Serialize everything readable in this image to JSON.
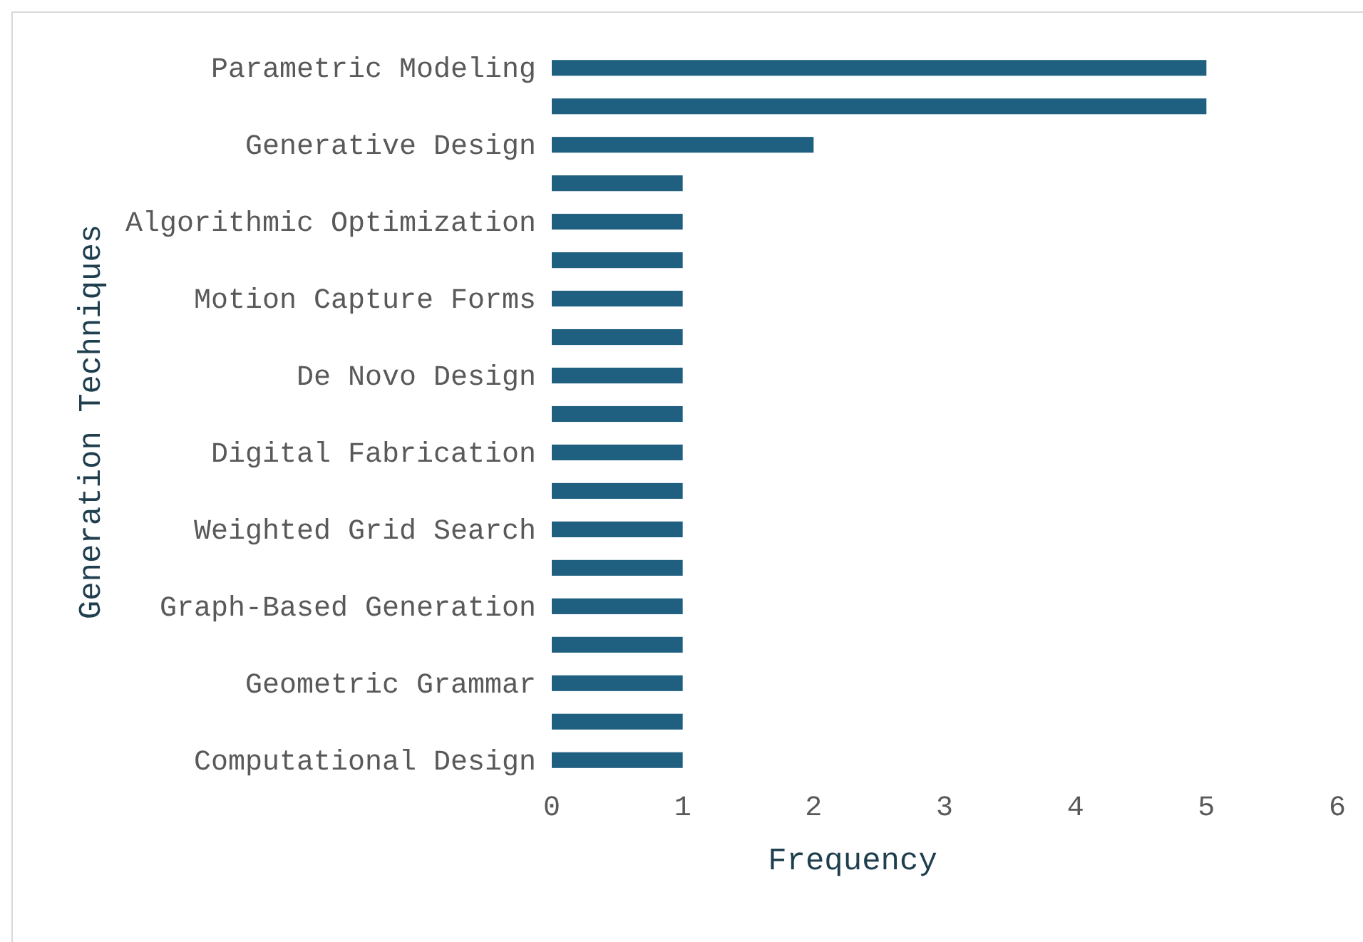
{
  "chart_data": {
    "type": "bar",
    "orientation": "horizontal",
    "xlabel": "Frequency",
    "ylabel": "Generation Techniques",
    "categories": [
      "Parametric Modeling",
      null,
      "Generative Design",
      null,
      "Algorithmic Optimization",
      null,
      "Motion Capture Forms",
      null,
      "De Novo Design",
      null,
      "Digital Fabrication",
      null,
      "Weighted Grid Search",
      null,
      "Graph-Based Generation",
      null,
      "Geometric Grammar",
      null,
      "Computational Design"
    ],
    "values": [
      5,
      5,
      2,
      1,
      1,
      1,
      1,
      1,
      1,
      1,
      1,
      1,
      1,
      1,
      1,
      1,
      1,
      1,
      1
    ],
    "color": "#1f5f7f",
    "xlim": [
      0,
      6
    ],
    "xticks": [
      0,
      1,
      2,
      3,
      4,
      5,
      6
    ],
    "grid": false
  }
}
